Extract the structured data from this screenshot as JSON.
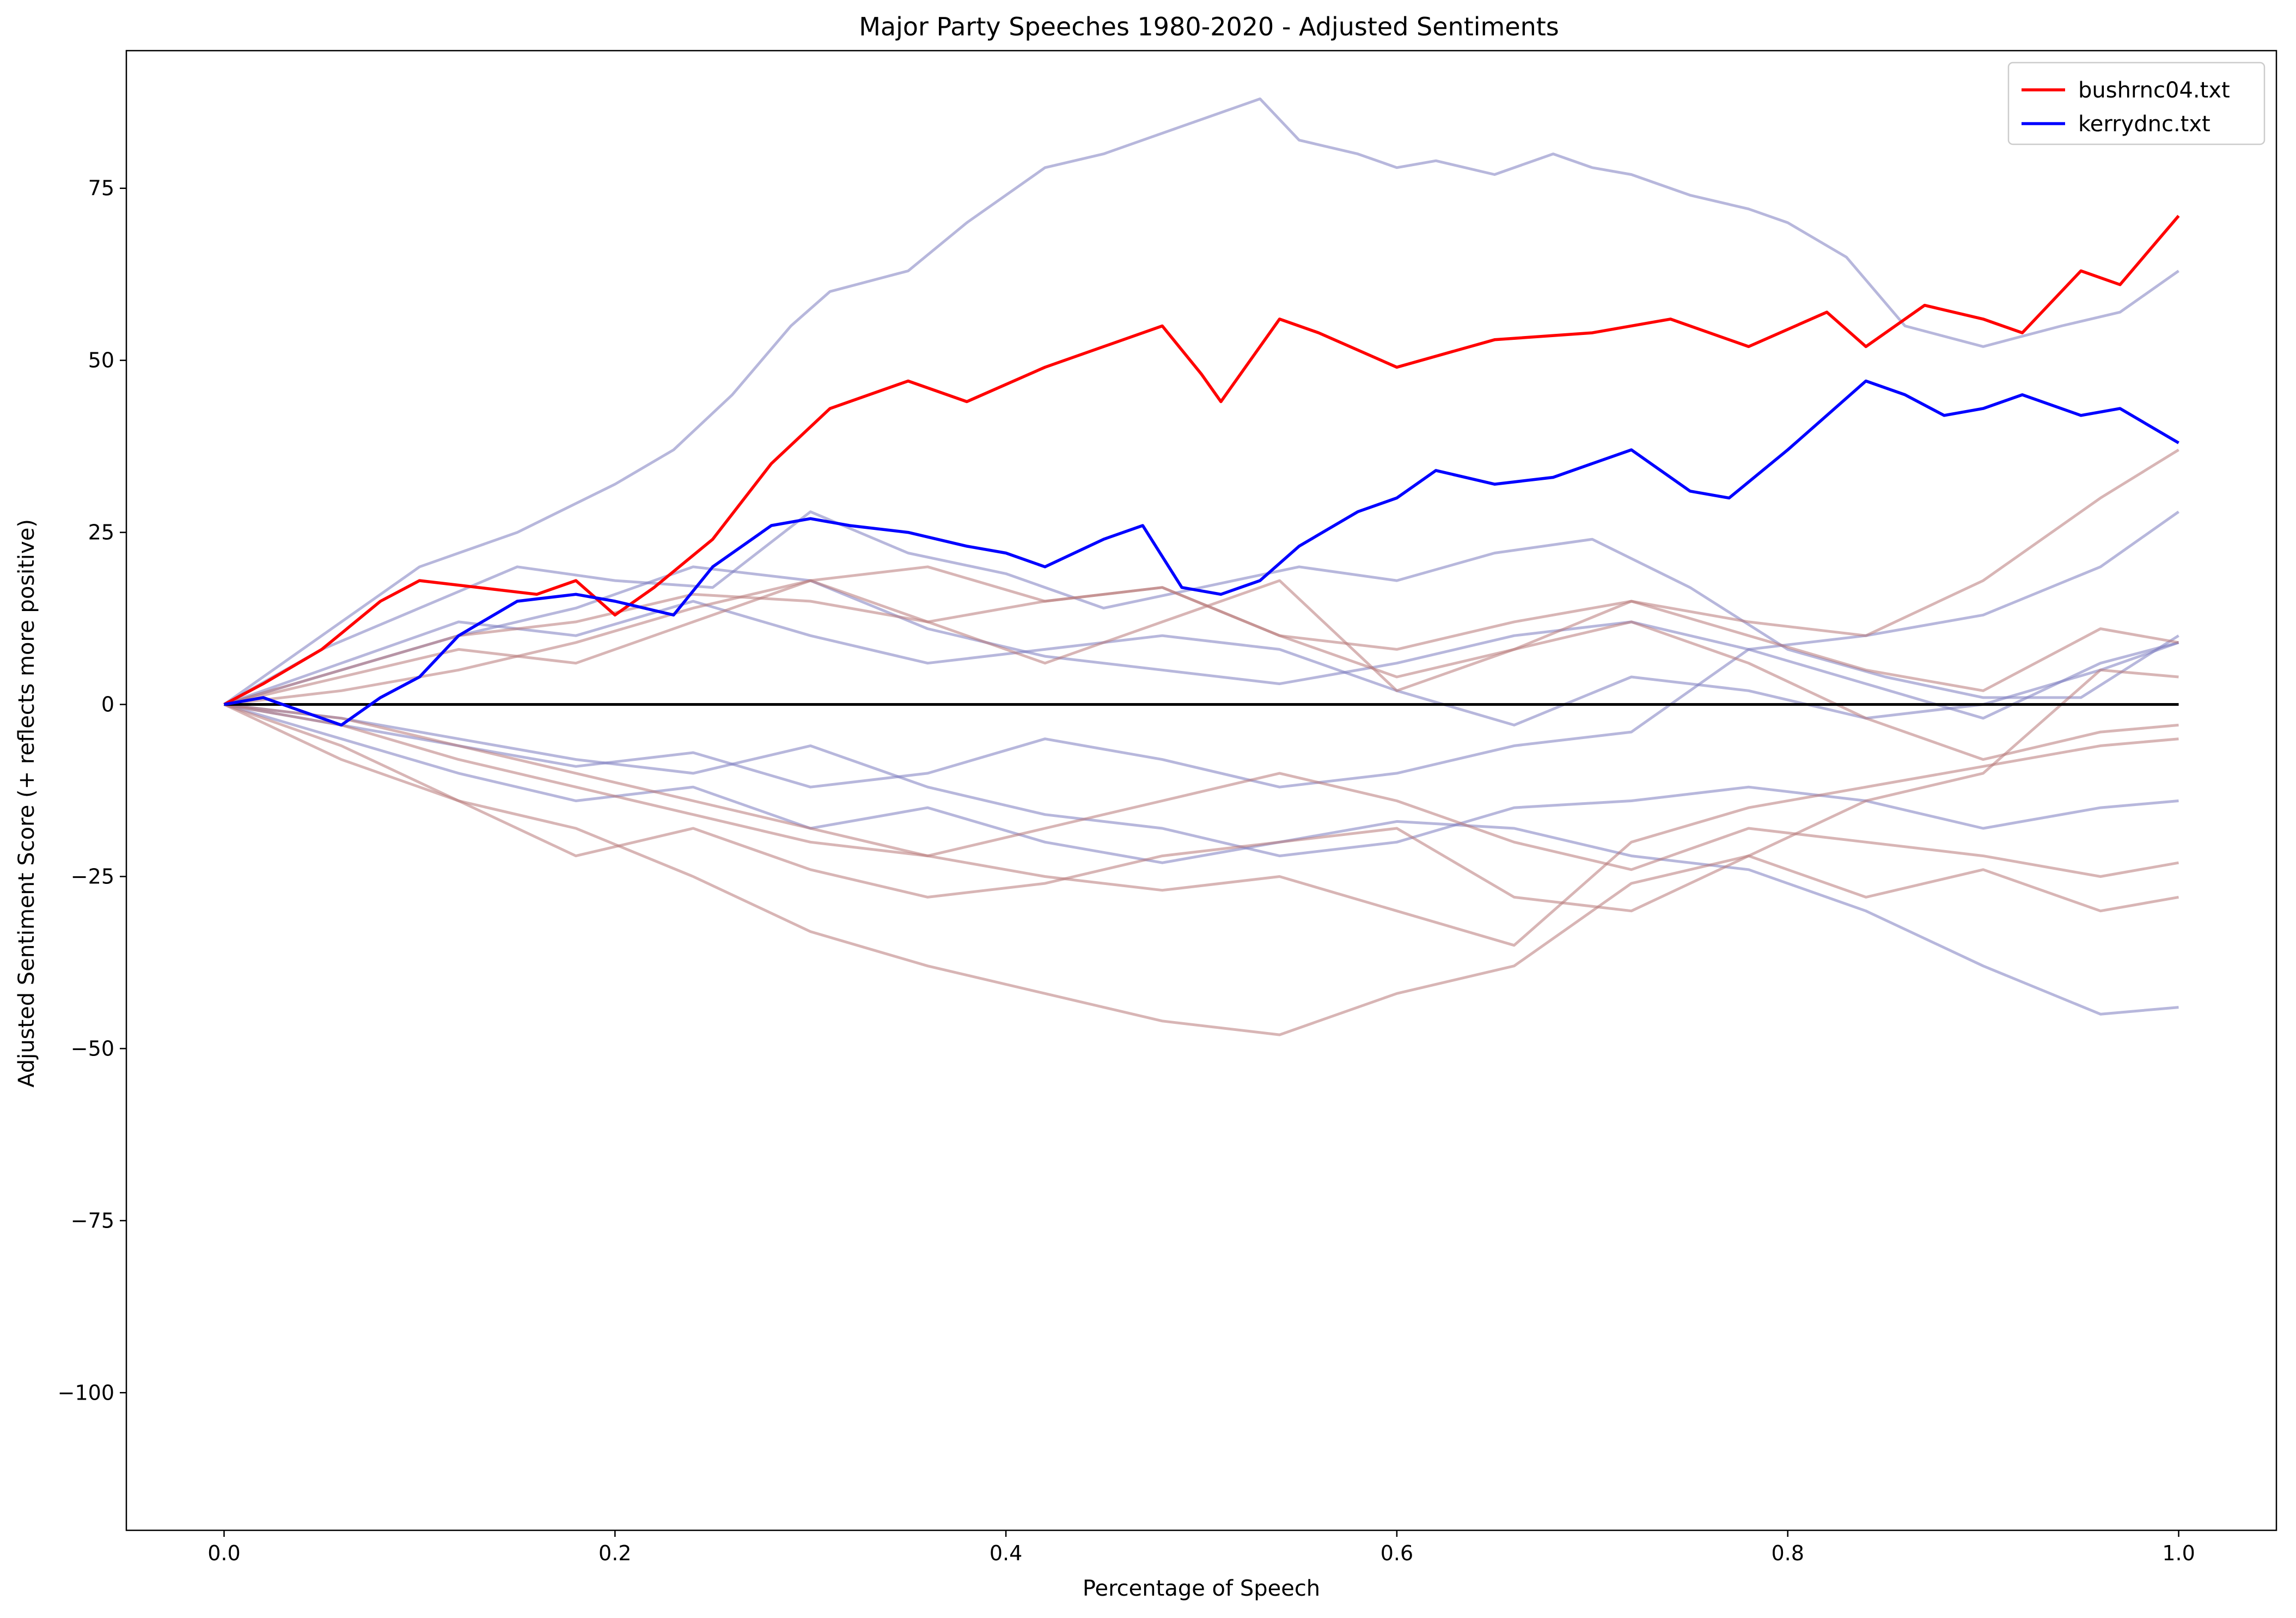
{
  "chart_data": {
    "type": "line",
    "title": "Major Party Speeches 1980-2020 - Adjusted Sentiments",
    "xlabel": "Percentage of Speech",
    "ylabel": "Adjusted Sentiment Score (+ reflects more positive)",
    "xlim": [
      -0.05,
      1.05
    ],
    "ylim": [
      -120,
      95
    ],
    "x_ticks": [
      0.0,
      0.2,
      0.4,
      0.6,
      0.8,
      1.0
    ],
    "x_tick_labels": [
      "0.0",
      "0.2",
      "0.4",
      "0.6",
      "0.8",
      "1.0"
    ],
    "y_ticks": [
      75,
      50,
      25,
      0,
      -25,
      -50,
      -75,
      -100
    ],
    "y_tick_labels": [
      "75",
      "50",
      "25",
      "0",
      "−25",
      "−50",
      "−75",
      "−100"
    ],
    "grid": false,
    "legend_position": "top-right",
    "reference_line": {
      "y": 0,
      "color": "#000000"
    },
    "highlighted_series": [
      {
        "name": "bushrnc04.txt",
        "color": "#ff0000",
        "x": [
          0,
          0.02,
          0.05,
          0.08,
          0.1,
          0.13,
          0.16,
          0.18,
          0.2,
          0.22,
          0.25,
          0.28,
          0.31,
          0.35,
          0.38,
          0.42,
          0.46,
          0.48,
          0.5,
          0.51,
          0.54,
          0.56,
          0.6,
          0.65,
          0.7,
          0.74,
          0.78,
          0.82,
          0.84,
          0.87,
          0.9,
          0.92,
          0.95,
          0.97,
          1.0
        ],
        "values": [
          0,
          3,
          8,
          15,
          18,
          17,
          16,
          18,
          13,
          17,
          24,
          35,
          43,
          47,
          44,
          49,
          53,
          55,
          48,
          44,
          56,
          54,
          49,
          53,
          54,
          56,
          52,
          57,
          52,
          58,
          56,
          54,
          63,
          61,
          71
        ]
      },
      {
        "name": "kerrydnc.txt",
        "color": "#0000ff",
        "x": [
          0,
          0.02,
          0.04,
          0.06,
          0.08,
          0.1,
          0.12,
          0.15,
          0.18,
          0.2,
          0.23,
          0.25,
          0.28,
          0.3,
          0.32,
          0.35,
          0.38,
          0.4,
          0.42,
          0.45,
          0.47,
          0.49,
          0.51,
          0.53,
          0.55,
          0.58,
          0.6,
          0.62,
          0.65,
          0.68,
          0.7,
          0.72,
          0.75,
          0.77,
          0.8,
          0.82,
          0.84,
          0.86,
          0.88,
          0.9,
          0.92,
          0.95,
          0.97,
          1.0
        ],
        "values": [
          0,
          1,
          -1,
          -3,
          1,
          4,
          10,
          15,
          16,
          15,
          13,
          20,
          26,
          27,
          26,
          25,
          23,
          22,
          20,
          24,
          26,
          17,
          16,
          18,
          23,
          28,
          30,
          34,
          32,
          33,
          35,
          37,
          31,
          30,
          37,
          42,
          47,
          45,
          42,
          43,
          45,
          42,
          43,
          38
        ]
      }
    ],
    "background_series": [
      {
        "color": "#7b7bc0",
        "x": [
          0,
          0.05,
          0.1,
          0.15,
          0.2,
          0.23,
          0.26,
          0.29,
          0.31,
          0.35,
          0.38,
          0.42,
          0.45,
          0.48,
          0.5,
          0.53,
          0.55,
          0.58,
          0.6,
          0.62,
          0.65,
          0.68,
          0.7,
          0.72,
          0.75,
          0.78,
          0.8,
          0.83,
          0.86,
          0.9,
          0.94,
          0.97,
          1.0
        ],
        "values": [
          0,
          10,
          20,
          25,
          32,
          37,
          45,
          55,
          60,
          63,
          70,
          78,
          80,
          83,
          85,
          88,
          82,
          80,
          78,
          79,
          77,
          80,
          78,
          77,
          74,
          72,
          70,
          65,
          55,
          52,
          55,
          57,
          63
        ]
      },
      {
        "color": "#7b7bc0",
        "x": [
          0,
          0.05,
          0.1,
          0.15,
          0.2,
          0.25,
          0.3,
          0.35,
          0.4,
          0.45,
          0.5,
          0.55,
          0.6,
          0.65,
          0.7,
          0.75,
          0.8,
          0.85,
          0.9,
          0.95,
          1.0
        ],
        "values": [
          0,
          8,
          14,
          20,
          18,
          17,
          28,
          22,
          19,
          14,
          17,
          20,
          18,
          22,
          24,
          17,
          8,
          4,
          1,
          1,
          10
        ]
      },
      {
        "color": "#7b7bc0",
        "x": [
          0,
          0.06,
          0.12,
          0.18,
          0.24,
          0.3,
          0.36,
          0.42,
          0.48,
          0.54,
          0.6,
          0.66,
          0.72,
          0.78,
          0.84,
          0.9,
          0.96,
          1.0
        ],
        "values": [
          0,
          5,
          10,
          14,
          20,
          18,
          11,
          7,
          5,
          3,
          6,
          10,
          12,
          8,
          10,
          13,
          20,
          28
        ]
      },
      {
        "color": "#7b7bc0",
        "x": [
          0,
          0.06,
          0.12,
          0.18,
          0.24,
          0.3,
          0.36,
          0.42,
          0.48,
          0.54,
          0.6,
          0.66,
          0.72,
          0.78,
          0.84,
          0.9,
          0.96,
          1.0
        ],
        "values": [
          0,
          -3,
          -6,
          -9,
          -7,
          -12,
          -10,
          -5,
          -8,
          -12,
          -10,
          -6,
          -4,
          8,
          3,
          -2,
          6,
          9
        ]
      },
      {
        "color": "#7b7bc0",
        "x": [
          0,
          0.06,
          0.12,
          0.18,
          0.24,
          0.3,
          0.36,
          0.42,
          0.48,
          0.54,
          0.6,
          0.66,
          0.72,
          0.78,
          0.84,
          0.9,
          0.96,
          1.0
        ],
        "values": [
          0,
          -5,
          -10,
          -14,
          -12,
          -18,
          -15,
          -20,
          -23,
          -20,
          -17,
          -18,
          -22,
          -24,
          -30,
          -38,
          -45,
          -44
        ]
      },
      {
        "color": "#7b7bc0",
        "x": [
          0,
          0.06,
          0.12,
          0.18,
          0.24,
          0.3,
          0.36,
          0.42,
          0.48,
          0.54,
          0.6,
          0.66,
          0.72,
          0.78,
          0.84,
          0.9,
          0.96,
          1.0
        ],
        "values": [
          0,
          -2,
          -5,
          -8,
          -10,
          -6,
          -12,
          -16,
          -18,
          -22,
          -20,
          -15,
          -14,
          -12,
          -14,
          -18,
          -15,
          -14
        ]
      },
      {
        "color": "#7b7bc0",
        "x": [
          0,
          0.06,
          0.12,
          0.18,
          0.24,
          0.3,
          0.36,
          0.42,
          0.48,
          0.54,
          0.6,
          0.66,
          0.72,
          0.78,
          0.84,
          0.9,
          0.96,
          1.0
        ],
        "values": [
          0,
          6,
          12,
          10,
          15,
          10,
          6,
          8,
          10,
          8,
          2,
          -3,
          4,
          2,
          -2,
          0,
          5,
          9
        ]
      },
      {
        "color": "#b87878",
        "x": [
          0,
          0.06,
          0.12,
          0.18,
          0.24,
          0.3,
          0.36,
          0.42,
          0.48,
          0.54,
          0.6,
          0.66,
          0.72,
          0.78,
          0.84,
          0.9,
          0.96,
          1.0
        ],
        "values": [
          0,
          -8,
          -14,
          -18,
          -25,
          -33,
          -38,
          -42,
          -46,
          -48,
          -42,
          -38,
          -26,
          -22,
          -14,
          -10,
          5,
          4
        ]
      },
      {
        "color": "#b87878",
        "x": [
          0,
          0.06,
          0.12,
          0.18,
          0.24,
          0.3,
          0.36,
          0.42,
          0.48,
          0.54,
          0.6,
          0.66,
          0.72,
          0.78,
          0.84,
          0.9,
          0.96,
          1.0
        ],
        "values": [
          0,
          5,
          10,
          12,
          16,
          15,
          12,
          15,
          17,
          10,
          8,
          12,
          15,
          12,
          10,
          18,
          30,
          37
        ]
      },
      {
        "color": "#b87878",
        "x": [
          0,
          0.06,
          0.12,
          0.18,
          0.24,
          0.3,
          0.36,
          0.42,
          0.48,
          0.54,
          0.6,
          0.66,
          0.72,
          0.78,
          0.84,
          0.9,
          0.96,
          1.0
        ],
        "values": [
          0,
          -6,
          -14,
          -22,
          -18,
          -24,
          -28,
          -26,
          -22,
          -20,
          -18,
          -28,
          -30,
          -22,
          -28,
          -24,
          -30,
          -28
        ]
      },
      {
        "color": "#b87878",
        "x": [
          0,
          0.06,
          0.12,
          0.18,
          0.24,
          0.3,
          0.36,
          0.42,
          0.48,
          0.54,
          0.6,
          0.66,
          0.72,
          0.78,
          0.84,
          0.9,
          0.96,
          1.0
        ],
        "values": [
          0,
          -3,
          -8,
          -12,
          -16,
          -20,
          -22,
          -18,
          -14,
          -10,
          -14,
          -20,
          -24,
          -18,
          -20,
          -22,
          -25,
          -23
        ]
      },
      {
        "color": "#b87878",
        "x": [
          0,
          0.06,
          0.12,
          0.18,
          0.24,
          0.3,
          0.36,
          0.42,
          0.48,
          0.54,
          0.6,
          0.66,
          0.72,
          0.78,
          0.84,
          0.9,
          0.96,
          1.0
        ],
        "values": [
          0,
          4,
          8,
          6,
          12,
          18,
          20,
          15,
          17,
          10,
          4,
          8,
          12,
          6,
          -2,
          -8,
          -4,
          -3
        ]
      },
      {
        "color": "#b87878",
        "x": [
          0,
          0.06,
          0.12,
          0.18,
          0.24,
          0.3,
          0.36,
          0.42,
          0.48,
          0.54,
          0.6,
          0.66,
          0.72,
          0.78,
          0.84,
          0.9,
          0.96,
          1.0
        ],
        "values": [
          0,
          2,
          5,
          9,
          14,
          18,
          12,
          6,
          12,
          18,
          2,
          8,
          15,
          10,
          5,
          2,
          11,
          9
        ]
      },
      {
        "color": "#b87878",
        "x": [
          0,
          0.06,
          0.12,
          0.18,
          0.24,
          0.3,
          0.36,
          0.42,
          0.48,
          0.54,
          0.6,
          0.66,
          0.72,
          0.78,
          0.84,
          0.9,
          0.96,
          1.0
        ],
        "values": [
          0,
          -2,
          -6,
          -10,
          -14,
          -18,
          -22,
          -25,
          -27,
          -25,
          -30,
          -35,
          -20,
          -15,
          -12,
          -9,
          -6,
          -5
        ]
      }
    ]
  }
}
